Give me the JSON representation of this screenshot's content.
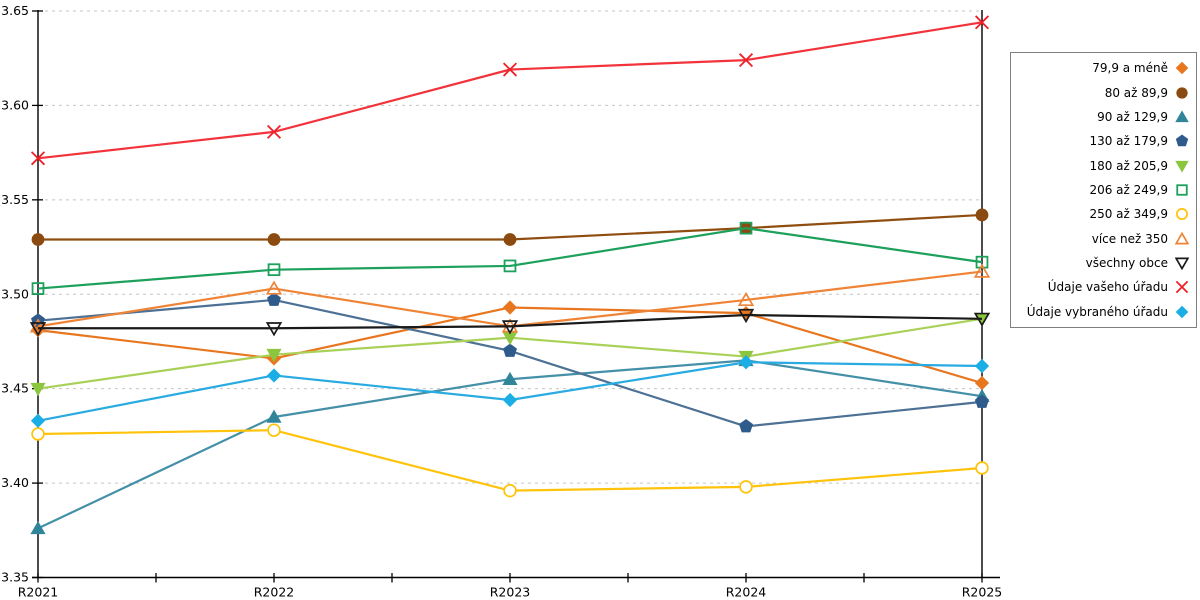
{
  "chart_data": {
    "type": "line",
    "title": "",
    "xlabel": "",
    "ylabel": "",
    "categories": [
      "R2021",
      "R2022",
      "R2023",
      "R2024",
      "R2025"
    ],
    "ylim": [
      3.35,
      3.65
    ],
    "yticks": [
      "3.35",
      "3.40",
      "3.45",
      "3.50",
      "3.55",
      "3.60",
      "3.65"
    ],
    "grid": "horizontal-dashed",
    "legend_position": "right-box",
    "axis_color": "#000000",
    "gridline_color": "#c6c6c6",
    "series": [
      {
        "name": "79,9 a méně",
        "marker": "diamond",
        "style": "filled",
        "color": "#E8761F",
        "marker_color": "#E8761F",
        "values": [
          3.481,
          3.466,
          3.493,
          3.49,
          3.453
        ]
      },
      {
        "name": "80 až 89,9",
        "marker": "circle",
        "style": "filled",
        "color": "#8F4E10",
        "marker_color": "#8B4A10",
        "values": [
          3.529,
          3.529,
          3.529,
          3.535,
          3.542
        ]
      },
      {
        "name": "90 až 129,9",
        "marker": "triangle-up",
        "style": "filled",
        "color": "#4490A8",
        "marker_color": "#31859B",
        "values": [
          3.376,
          3.435,
          3.455,
          3.465,
          3.446
        ]
      },
      {
        "name": "130 až 179,9",
        "marker": "pentagon",
        "style": "filled",
        "color": "#4C7195",
        "marker_color": "#2E5B8C",
        "values": [
          3.486,
          3.497,
          3.47,
          3.43,
          3.443
        ]
      },
      {
        "name": "180 až 205,9",
        "marker": "triangle-down",
        "style": "filled",
        "color": "#A9D158",
        "marker_color": "#8CC63F",
        "values": [
          3.45,
          3.468,
          3.477,
          3.467,
          3.487
        ]
      },
      {
        "name": "206 až 249,9",
        "marker": "square",
        "style": "open",
        "color": "#1CA05B",
        "marker_color": "#1CA05B",
        "values": [
          3.503,
          3.513,
          3.515,
          3.535,
          3.517
        ]
      },
      {
        "name": "250 až 349,9",
        "marker": "circle",
        "style": "open",
        "color": "#FFC30B",
        "marker_color": "#FFC30B",
        "values": [
          3.426,
          3.428,
          3.396,
          3.398,
          3.408
        ]
      },
      {
        "name": "více než 350",
        "marker": "triangle-up",
        "style": "open",
        "color": "#F08436",
        "marker_color": "#F08436",
        "values": [
          3.483,
          3.503,
          3.483,
          3.497,
          3.512
        ]
      },
      {
        "name": "všechny obce",
        "marker": "triangle-down",
        "style": "open",
        "color": "#1A1A1A",
        "marker_color": "#1A1A1A",
        "values": [
          3.482,
          3.482,
          3.483,
          3.489,
          3.487
        ]
      },
      {
        "name": "Údaje vašeho úřadu",
        "marker": "x",
        "style": "open",
        "color": "#F2333B",
        "marker_color": "#EE2128",
        "values": [
          3.572,
          3.586,
          3.619,
          3.624,
          3.644
        ]
      },
      {
        "name": "Údaje vybraného úřadu",
        "marker": "diamond",
        "style": "filled",
        "color": "#29ABE2",
        "marker_color": "#1BAEE6",
        "values": [
          3.433,
          3.457,
          3.444,
          3.464,
          3.462
        ]
      }
    ]
  }
}
